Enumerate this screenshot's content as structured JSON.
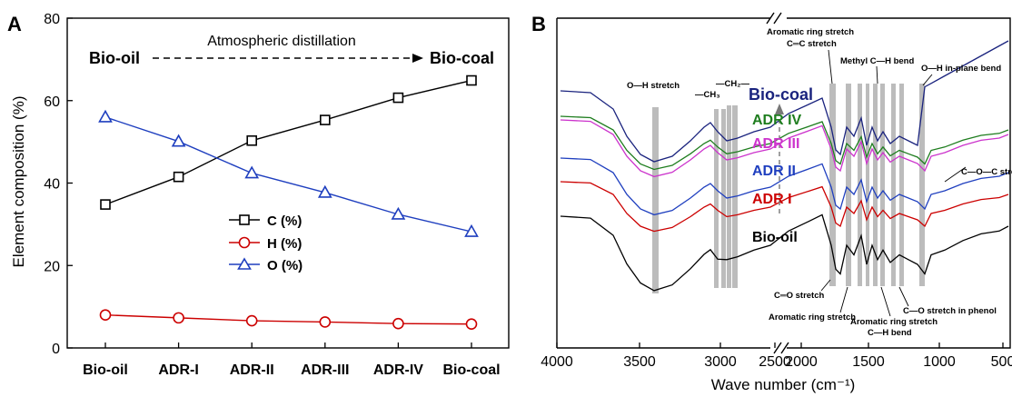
{
  "chart_data": [
    {
      "panel_label": "A",
      "type": "line",
      "xlabel": "",
      "ylabel": "Element composition (%)",
      "categories": [
        "Bio-oil",
        "ADR-I",
        "ADR-II",
        "ADR-III",
        "ADR-IV",
        "Bio-coal"
      ],
      "ylim": [
        0,
        80
      ],
      "yticks": [
        "0",
        "20",
        "40",
        "60",
        "80"
      ],
      "legend_position": "center-left",
      "grid": false,
      "series": [
        {
          "name": "C (%)",
          "color": "#000000",
          "marker": "square",
          "values": [
            34.8,
            41.5,
            50.3,
            55.3,
            60.7,
            64.9
          ]
        },
        {
          "name": "H (%)",
          "color": "#cc0000",
          "marker": "circle",
          "values": [
            8.0,
            7.3,
            6.6,
            6.3,
            5.9,
            5.8
          ]
        },
        {
          "name": "O (%)",
          "color": "#1f3fbf",
          "marker": "triangle",
          "values": [
            56.0,
            50.1,
            42.4,
            37.7,
            32.4,
            28.2
          ]
        }
      ],
      "annotations": {
        "left": "Bio-oil",
        "arrow": "Atmospheric distillation",
        "right": "Bio-coal"
      }
    },
    {
      "panel_label": "B",
      "type": "line",
      "xlabel": "Wave number (cm⁻¹)",
      "ylabel": "",
      "x_reversed": true,
      "xticks": [
        "4000",
        "3500",
        "3000",
        "2500",
        "2000",
        "1500",
        "1000",
        "500"
      ],
      "axis_break": true,
      "series_names": [
        {
          "name": "Bio-coal",
          "color": "#1a237e"
        },
        {
          "name": "ADR IV",
          "color": "#1e7d1e"
        },
        {
          "name": "ADR III",
          "color": "#cc33cc"
        },
        {
          "name": "ADR II",
          "color": "#1f3fbf"
        },
        {
          "name": "ADR I",
          "color": "#cc0000"
        },
        {
          "name": "Bio-oil",
          "color": "#000000"
        }
      ],
      "annotations": {
        "oh_stretch": "O—H stretch",
        "ch3": "—CH₃",
        "ch2": "—CH₂—",
        "aromatic_ring_top": "Aromatic ring stretch",
        "cc_stretch": "C═C stretch",
        "methyl_bend": "Methyl C—H bend",
        "oh_inplane": "O—H in-plane bend",
        "coc_stretch": "C—O—C stretch",
        "co_stretch": "C═O stretch",
        "aromatic_ring_bottom": "Aromatic ring stretch",
        "aromatic_ring_bottom2": "Aromatic ring stretch",
        "ch_bend": "C—H bend",
        "co_phenol": "C—O stretch in phenol"
      }
    }
  ]
}
